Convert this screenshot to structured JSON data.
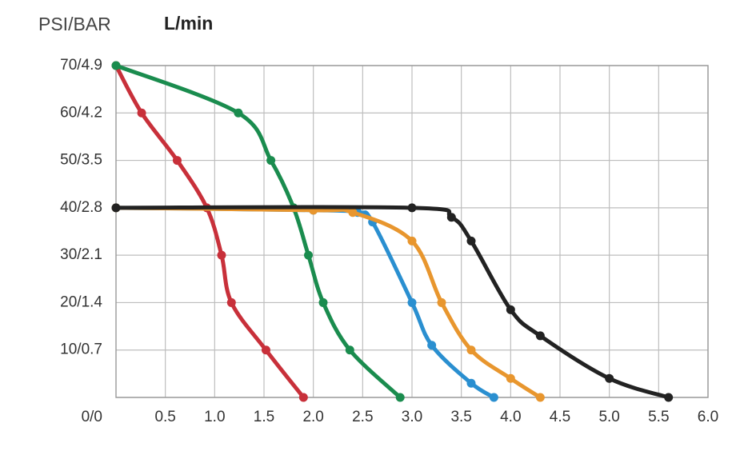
{
  "chart_data": {
    "type": "line",
    "y_label": "PSI/BAR",
    "x_label": "L/min",
    "xlim": [
      0,
      6
    ],
    "ylim": [
      0,
      70
    ],
    "xticks": [
      0.5,
      {
        "value": 1,
        "label": "1.0"
      },
      1.5,
      {
        "value": 2,
        "label": "2.0"
      },
      2.5,
      {
        "value": 3,
        "label": "3.0"
      },
      3.5,
      {
        "value": 4,
        "label": "4.0"
      },
      4.5,
      {
        "value": 5,
        "label": "5.0"
      },
      5.5,
      {
        "value": 6,
        "label": "6.0"
      }
    ],
    "yticks": [
      {
        "value": 0,
        "label": "0/0"
      },
      {
        "value": 10,
        "label": "10/0.7"
      },
      {
        "value": 20,
        "label": "20/1.4"
      },
      {
        "value": 30,
        "label": "30/2.1"
      },
      {
        "value": 40,
        "label": "40/2.8"
      },
      {
        "value": 50,
        "label": "50/3.5"
      },
      {
        "value": 60,
        "label": "60/4.2"
      },
      {
        "value": 70,
        "label": "70/4.9"
      }
    ],
    "grid": true,
    "series": [
      {
        "color": "#c8303a",
        "x": [
          0,
          0.26,
          0.62,
          0.92,
          1.07,
          1.17,
          1.52,
          1.9
        ],
        "values": [
          70,
          60,
          50,
          40,
          30,
          20,
          10,
          0
        ]
      },
      {
        "color": "#1a8c4e",
        "x": [
          0,
          1.24,
          1.57,
          1.8,
          1.95,
          2.1,
          2.37,
          2.88
        ],
        "values": [
          70,
          60,
          50,
          40,
          30,
          20,
          10,
          0
        ]
      },
      {
        "color": "#2a8fd0",
        "x": [
          0,
          2.0,
          2.45,
          2.6,
          3.0,
          3.2,
          3.6,
          3.83
        ],
        "values": [
          40,
          39.5,
          39,
          37,
          20,
          11,
          3,
          0
        ]
      },
      {
        "color": "#e8962e",
        "x": [
          0,
          2.0,
          2.4,
          3.0,
          3.3,
          3.6,
          4.0,
          4.3
        ],
        "values": [
          40,
          39.5,
          39,
          33,
          20,
          10,
          4,
          0
        ]
      },
      {
        "color": "#222222",
        "x": [
          0,
          3.0,
          3.4,
          3.6,
          4.0,
          4.3,
          5.0,
          5.6
        ],
        "values": [
          40,
          40,
          38,
          33,
          18.5,
          13,
          4,
          0
        ]
      }
    ]
  }
}
